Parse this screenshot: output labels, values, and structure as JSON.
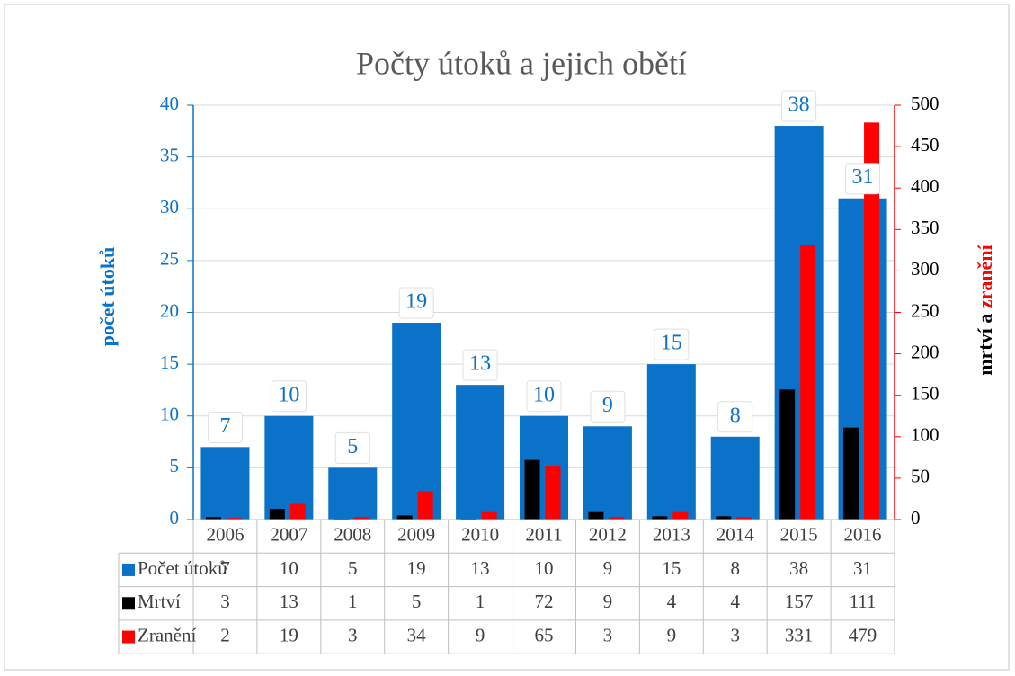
{
  "chart_data": {
    "type": "bar",
    "title": "Počty útoků a jejich obětí",
    "ylabel": "počet útoků",
    "y2label": [
      "mrtví a",
      "zranění"
    ],
    "categories": [
      "2006",
      "2007",
      "2008",
      "2009",
      "2010",
      "2011",
      "2012",
      "2013",
      "2014",
      "2015",
      "2016"
    ],
    "series": [
      {
        "name": "Počet útoků",
        "color": "#0a72c8",
        "values": [
          7,
          10,
          5,
          19,
          13,
          10,
          9,
          15,
          8,
          38,
          31
        ]
      },
      {
        "name": "Mrtví",
        "color": "#000000",
        "axis": "y2",
        "values": [
          3,
          13,
          1,
          5,
          1,
          72,
          9,
          4,
          4,
          157,
          111
        ]
      },
      {
        "name": "Zranění",
        "color": "#ff0000",
        "axis": "y2",
        "values": [
          2,
          19,
          3,
          34,
          9,
          65,
          3,
          9,
          3,
          331,
          479
        ]
      }
    ],
    "ylim": [
      0,
      40
    ],
    "yticks": [
      0,
      5,
      10,
      15,
      20,
      25,
      30,
      35,
      40
    ],
    "y2lim": [
      0,
      500
    ],
    "y2ticks": [
      0,
      50,
      100,
      150,
      200,
      250,
      300,
      350,
      400,
      450,
      500
    ],
    "grid": true
  }
}
